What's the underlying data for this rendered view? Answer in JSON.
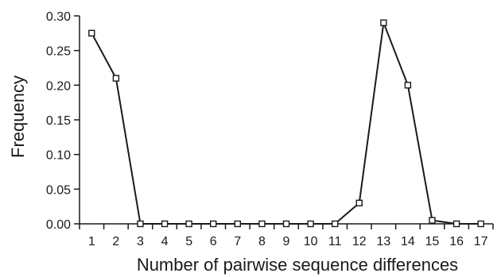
{
  "chart_data": {
    "type": "line",
    "xlabel": "Number of pairwise sequence differences",
    "ylabel": "Frequency",
    "x": [
      1,
      2,
      3,
      4,
      5,
      6,
      7,
      8,
      9,
      10,
      11,
      12,
      13,
      14,
      15,
      16,
      17
    ],
    "xlim": [
      0.5,
      17.5
    ],
    "ylim": [
      0,
      0.3
    ],
    "y_ticks": [
      "0.00",
      "0.05",
      "0.10",
      "0.15",
      "0.20",
      "0.25",
      "0.30"
    ],
    "x_ticks": [
      "1",
      "2",
      "3",
      "4",
      "5",
      "6",
      "7",
      "8",
      "9",
      "10",
      "11",
      "12",
      "13",
      "14",
      "15",
      "16",
      "17"
    ],
    "series": [
      {
        "values": [
          0.275,
          0.21,
          0.0,
          0.0,
          0.0,
          0.0,
          0.0,
          0.0,
          0.0,
          0.0,
          0.0,
          0.03,
          0.29,
          0.2,
          0.005,
          0.0,
          0.0
        ],
        "marker": "open-square",
        "color": "#1a1a1a"
      }
    ],
    "grid": false,
    "legend": "none"
  }
}
